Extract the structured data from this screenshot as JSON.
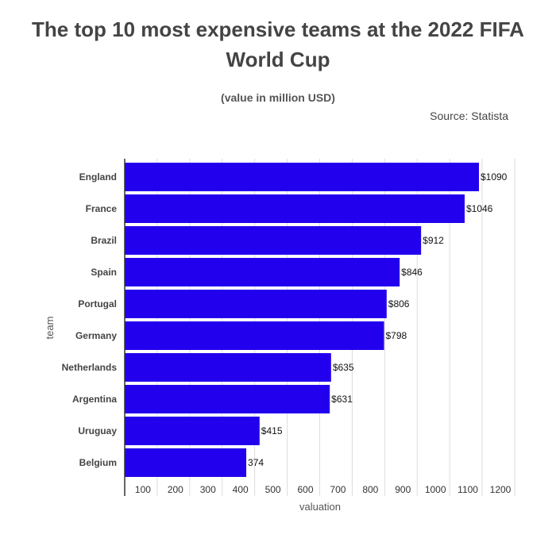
{
  "chart_data": {
    "type": "bar",
    "orientation": "horizontal",
    "title": "The top 10 most expensive teams at the 2022 FIFA World Cup",
    "subtitle": "(value in million USD)",
    "source": "Source: Statista",
    "xlabel": "valuation",
    "ylabel": "team",
    "categories": [
      "England",
      "France",
      "Brazil",
      "Spain",
      "Portugal",
      "Germany",
      "Netherlands",
      "Argentina",
      "Uruguay",
      "Belgium"
    ],
    "values": [
      1090,
      1046,
      912,
      846,
      806,
      798,
      635,
      631,
      415,
      374
    ],
    "data_labels": [
      "$1090",
      "$1046",
      "$912",
      "$846",
      "$806",
      "$798",
      "$635",
      "$631",
      "$415",
      "374"
    ],
    "xlim": [
      0,
      1200
    ],
    "xticks": [
      100,
      200,
      300,
      400,
      500,
      600,
      700,
      800,
      900,
      1000,
      1100,
      1200
    ],
    "grid": true,
    "bar_color": "#2200ee"
  }
}
